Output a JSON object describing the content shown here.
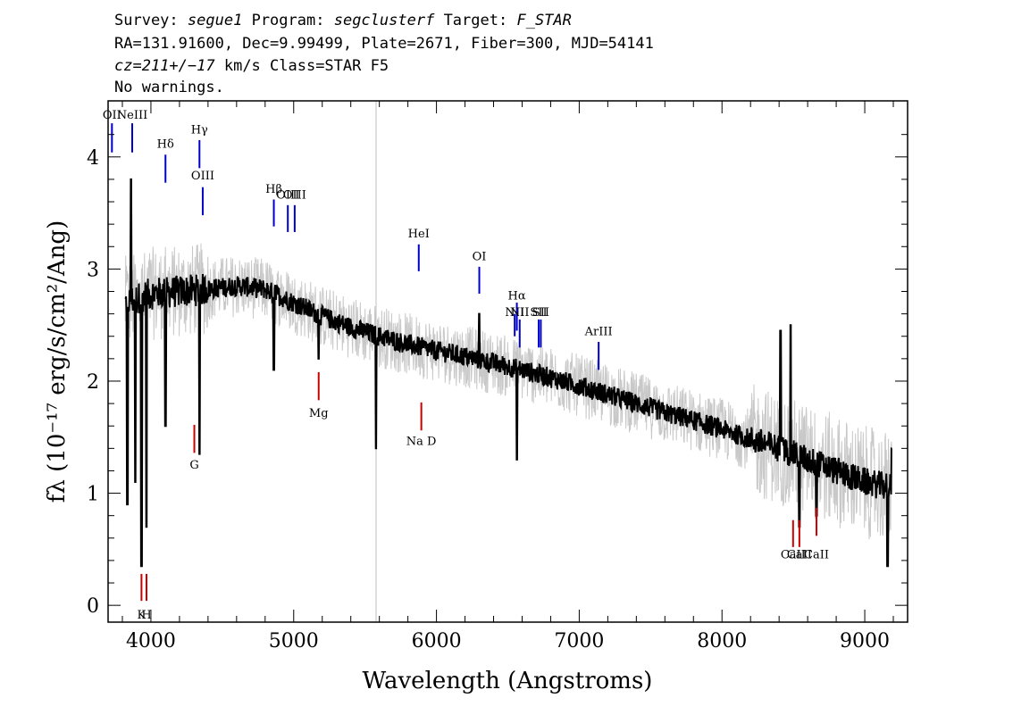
{
  "header": {
    "line1": {
      "survey_label": "Survey:",
      "survey": "segue1",
      "program_label": "Program:",
      "program": "segclusterf",
      "target_label": "Target:",
      "target": "F_STAR"
    },
    "line2": "RA=131.91600, Dec=9.99499, Plate=2671, Fiber=300, MJD=54141",
    "line3": {
      "cz": "cz=211+/−17",
      "rest": "km/s Class=STAR F5"
    },
    "line4": "No warnings."
  },
  "chart_data": {
    "type": "line",
    "xlabel": "Wavelength (Angstroms)",
    "ylabel": "fλ (10⁻¹⁷ erg/s/cm²/Ang)",
    "xlim": [
      3700,
      9300
    ],
    "ylim": [
      -0.15,
      4.5
    ],
    "xticks": [
      4000,
      5000,
      6000,
      7000,
      8000,
      9000
    ],
    "yticks": [
      0,
      1,
      2,
      3,
      4
    ],
    "data_range": [
      3820,
      9190
    ],
    "series": [
      {
        "role": "flux",
        "color": "#000000",
        "continuum": [
          [
            3820,
            2.7
          ],
          [
            4000,
            2.78
          ],
          [
            4200,
            2.8
          ],
          [
            4400,
            2.82
          ],
          [
            4600,
            2.85
          ],
          [
            4800,
            2.82
          ],
          [
            5000,
            2.7
          ],
          [
            5200,
            2.58
          ],
          [
            5400,
            2.48
          ],
          [
            5600,
            2.4
          ],
          [
            5800,
            2.33
          ],
          [
            6000,
            2.27
          ],
          [
            6200,
            2.22
          ],
          [
            6400,
            2.16
          ],
          [
            6600,
            2.1
          ],
          [
            6800,
            2.03
          ],
          [
            7000,
            1.96
          ],
          [
            7200,
            1.88
          ],
          [
            7400,
            1.8
          ],
          [
            7600,
            1.72
          ],
          [
            7800,
            1.65
          ],
          [
            8000,
            1.57
          ],
          [
            8200,
            1.48
          ],
          [
            8400,
            1.4
          ],
          [
            8600,
            1.3
          ],
          [
            8800,
            1.2
          ],
          [
            9000,
            1.1
          ],
          [
            9190,
            1.05
          ]
        ],
        "features": [
          {
            "x": 3835,
            "y": 0.9
          },
          {
            "x": 3860,
            "y": 3.8
          },
          {
            "x": 3890,
            "y": 1.1
          },
          {
            "x": 3934,
            "y": 0.35
          },
          {
            "x": 3969,
            "y": 0.7
          },
          {
            "x": 4102,
            "y": 1.6
          },
          {
            "x": 4340,
            "y": 1.35
          },
          {
            "x": 4861,
            "y": 2.1
          },
          {
            "x": 5175,
            "y": 2.2
          },
          {
            "x": 5577,
            "y": 1.4
          },
          {
            "x": 6300,
            "y": 2.6
          },
          {
            "x": 6563,
            "y": 1.3
          },
          {
            "x": 8410,
            "y": 2.45
          },
          {
            "x": 8480,
            "y": 2.5
          },
          {
            "x": 8542,
            "y": 0.7
          },
          {
            "x": 8662,
            "y": 0.8
          },
          {
            "x": 9160,
            "y": 0.35
          },
          {
            "x": 9190,
            "y": 1.4
          }
        ],
        "noise": 0.09
      },
      {
        "role": "error",
        "color": "#c8c8c8",
        "noise": 0.28
      }
    ],
    "reference_line": {
      "x": 5577,
      "color": "#c0c0c0"
    },
    "emission_lines": [
      {
        "label": "OII",
        "x": 3727,
        "y_low": 4.04,
        "y_high": 4.3,
        "label_y": 4.34
      },
      {
        "label": "NeIII",
        "x": 3869,
        "y_low": 4.04,
        "y_high": 4.3,
        "label_y": 4.34
      },
      {
        "label": "Hδ",
        "x": 4102,
        "y_low": 3.77,
        "y_high": 4.02,
        "label_y": 4.08
      },
      {
        "label": "Hγ",
        "x": 4340,
        "y_low": 3.9,
        "y_high": 4.15,
        "label_y": 4.21
      },
      {
        "label": "OIII",
        "x": 4363,
        "y_low": 3.48,
        "y_high": 3.73,
        "label_y": 3.8
      },
      {
        "label": "Hβ",
        "x": 4861,
        "y_low": 3.38,
        "y_high": 3.62,
        "label_y": 3.68
      },
      {
        "label": "OIII",
        "x": 4959,
        "y_low": 3.33,
        "y_high": 3.57,
        "label_y": 3.63
      },
      {
        "label": "OIII",
        "x": 5007,
        "y_low": 3.33,
        "y_high": 3.57,
        "label_y": 3.63
      },
      {
        "label": "HeI",
        "x": 5876,
        "y_low": 2.98,
        "y_high": 3.22,
        "label_y": 3.28
      },
      {
        "label": "OI",
        "x": 6300,
        "y_low": 2.78,
        "y_high": 3.02,
        "label_y": 3.08
      },
      {
        "label": "NII",
        "x": 6548,
        "y_low": 2.4,
        "y_high": 2.6,
        "label_y": 2.58
      },
      {
        "label": "Hα",
        "x": 6563,
        "y_low": 2.45,
        "y_high": 2.7,
        "label_y": 2.73
      },
      {
        "label": "NII",
        "x": 6583,
        "y_low": 2.3,
        "y_high": 2.55,
        "label_y": 2.58
      },
      {
        "label": "SII",
        "x": 6716,
        "y_low": 2.3,
        "y_high": 2.55,
        "label_y": 2.58
      },
      {
        "label": "SII",
        "x": 6731,
        "y_low": 2.3,
        "y_high": 2.55,
        "label_y": 2.58
      },
      {
        "label": "ArIII",
        "x": 7136,
        "y_low": 2.1,
        "y_high": 2.35,
        "label_y": 2.41
      }
    ],
    "absorption_lines": [
      {
        "label": "K",
        "x": 3934,
        "y_low": 0.04,
        "y_high": 0.28,
        "label_y": -0.12
      },
      {
        "label": "H",
        "x": 3969,
        "y_low": 0.04,
        "y_high": 0.28,
        "label_y": -0.12
      },
      {
        "label": "G",
        "x": 4304,
        "y_low": 1.36,
        "y_high": 1.61,
        "label_y": 1.22
      },
      {
        "label": "Mg",
        "x": 5175,
        "y_low": 1.83,
        "y_high": 2.08,
        "label_y": 1.68
      },
      {
        "label": "Na D",
        "x": 5894,
        "y_low": 1.56,
        "y_high": 1.81,
        "label_y": 1.43
      },
      {
        "label": "CaII",
        "x": 8498,
        "y_low": 0.52,
        "y_high": 0.76,
        "label_y": 0.42
      },
      {
        "label": "CaII",
        "x": 8542,
        "y_low": 0.52,
        "y_high": 0.76,
        "label_y": 0.42
      },
      {
        "label": "CaII",
        "x": 8662,
        "y_low": 0.62,
        "y_high": 0.87,
        "label_y": 0.42
      }
    ],
    "colors": {
      "emission": "#0000cc",
      "absorption": "#cc0000"
    }
  }
}
